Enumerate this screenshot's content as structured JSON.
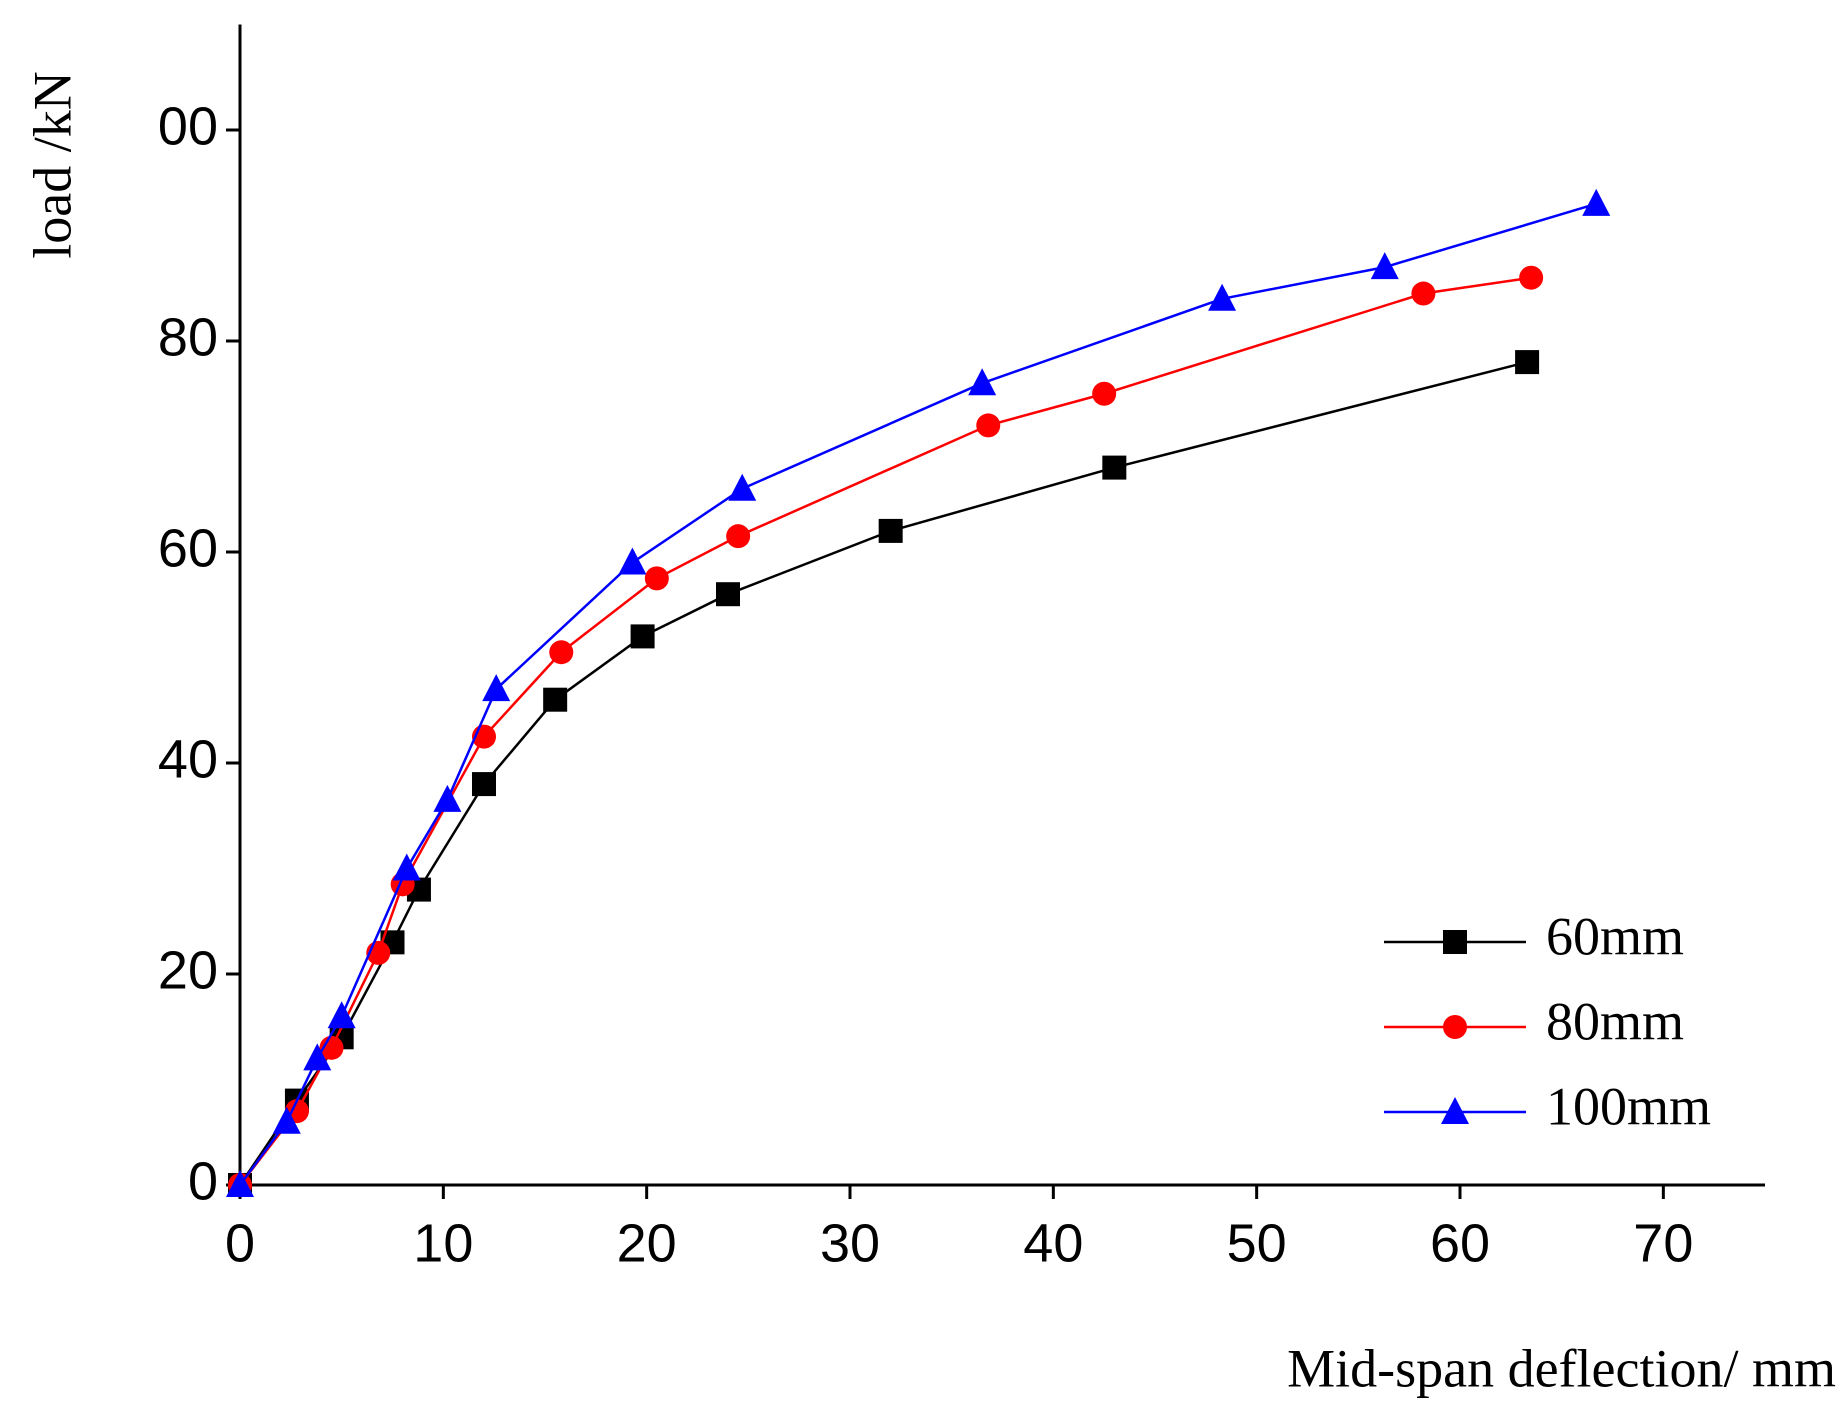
{
  "chart_data": {
    "type": "line",
    "xlabel": "Mid-span deflection/ mm",
    "ylabel": "load /kN",
    "xlim": [
      0,
      75
    ],
    "ylim": [
      0,
      110
    ],
    "xticks": [
      0,
      10,
      20,
      30,
      40,
      50,
      60,
      70
    ],
    "yticks": [
      0,
      20,
      40,
      60,
      80,
      {
        "value": 100,
        "label": "00"
      }
    ],
    "legend": "lower right",
    "series": [
      {
        "name": "60mm",
        "color": "#000000",
        "marker": "square",
        "x": [
          0,
          2.8,
          5,
          7.5,
          8.8,
          12,
          15.5,
          19.8,
          24,
          32,
          43,
          63.3
        ],
        "values": [
          0,
          8,
          14,
          23,
          28,
          38,
          46,
          52,
          56,
          62,
          68,
          78
        ]
      },
      {
        "name": "80mm",
        "color": "#ff0000",
        "marker": "circle",
        "x": [
          0,
          2.8,
          4.5,
          6.8,
          8,
          12,
          15.8,
          20.5,
          24.5,
          36.8,
          42.5,
          58.2,
          63.5
        ],
        "values": [
          0,
          7,
          13,
          22,
          28.5,
          42.5,
          50.5,
          57.5,
          61.5,
          72,
          75,
          84.5,
          86
        ]
      },
      {
        "name": "100mm",
        "color": "#0000ff",
        "marker": "triangle",
        "x": [
          0,
          2.3,
          3.8,
          5,
          8.2,
          10.2,
          12.6,
          19.3,
          24.7,
          36.5,
          48.3,
          56.3,
          66.7
        ],
        "values": [
          0,
          6,
          12,
          16,
          30,
          36.5,
          47,
          59,
          66,
          76,
          84,
          87,
          93
        ]
      }
    ]
  }
}
